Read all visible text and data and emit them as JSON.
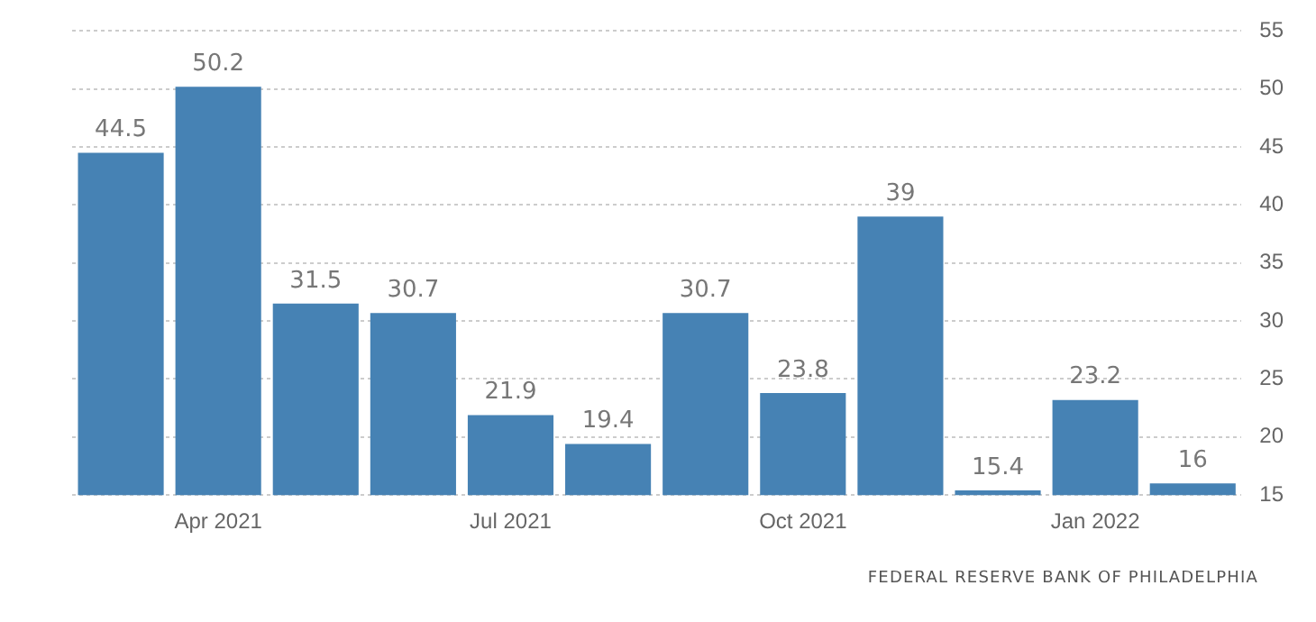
{
  "chart_data": {
    "type": "bar",
    "categories": [
      null,
      "Apr 2021",
      null,
      null,
      "Jul 2021",
      null,
      null,
      "Oct 2021",
      null,
      null,
      "Jan 2022",
      null
    ],
    "values": [
      44.5,
      50.2,
      31.5,
      30.7,
      21.9,
      19.4,
      30.7,
      23.8,
      39,
      15.4,
      23.2,
      16
    ],
    "color": "#4682b4",
    "ylim": [
      15,
      55
    ],
    "yticks": [
      15,
      20,
      25,
      30,
      35,
      40,
      45,
      50,
      55
    ],
    "grid": "y",
    "legend": false,
    "data_labels": true,
    "annotations": [
      "FEDERAL RESERVE BANK OF PHILADELPHIA"
    ]
  }
}
